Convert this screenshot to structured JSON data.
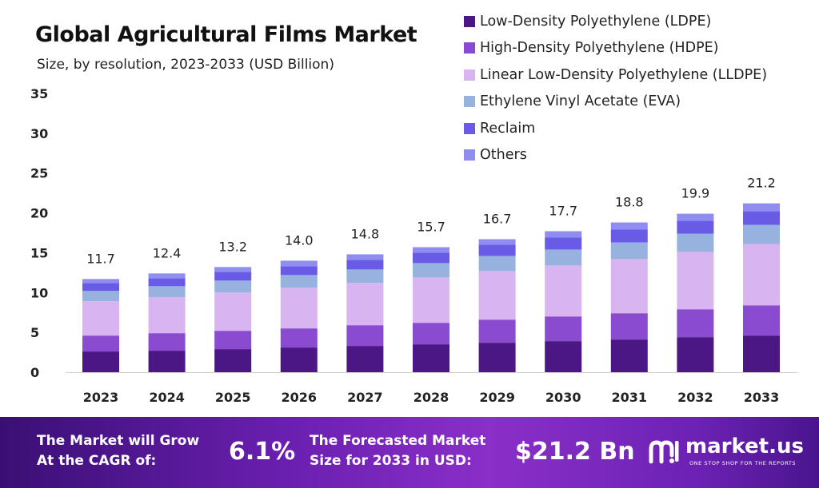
{
  "colors": {
    "ldpe": "#4b1784",
    "hdpe": "#8a4bd0",
    "lldpe": "#d8b4f0",
    "eva": "#98b2e0",
    "reclaim": "#6a5be6",
    "others": "#8f8ef0",
    "banner_start": "#3a0f74",
    "banner_end": "#8a2fc8"
  },
  "chart_data": {
    "type": "bar",
    "stacked": true,
    "title": "Global Agricultural Films Market",
    "subtitle": "Size, by resolution, 2023-2033 (USD Billion)",
    "xlabel": "",
    "ylabel": "",
    "ylim": [
      0,
      35
    ],
    "yticks": [
      0,
      5,
      10,
      15,
      20,
      25,
      30,
      35
    ],
    "grid": false,
    "legend_position": "top-right",
    "categories": [
      "2023",
      "2024",
      "2025",
      "2026",
      "2027",
      "2028",
      "2029",
      "2030",
      "2031",
      "2032",
      "2033"
    ],
    "totals": [
      11.7,
      12.4,
      13.2,
      14.0,
      14.8,
      15.7,
      16.7,
      17.7,
      18.8,
      19.9,
      21.2
    ],
    "total_labels": [
      "11.7",
      "12.4",
      "13.2",
      "14.0",
      "14.8",
      "15.7",
      "16.7",
      "17.7",
      "18.8",
      "19.9",
      "21.2"
    ],
    "series": [
      {
        "name": "Low-Density Polyethylene (LDPE)",
        "color_key": "ldpe",
        "values": [
          2.6,
          2.7,
          2.9,
          3.1,
          3.3,
          3.5,
          3.7,
          3.9,
          4.1,
          4.4,
          4.6
        ]
      },
      {
        "name": "High-Density Polyethylene (HDPE)",
        "color_key": "hdpe",
        "values": [
          2.0,
          2.2,
          2.3,
          2.4,
          2.6,
          2.7,
          2.9,
          3.1,
          3.3,
          3.5,
          3.8
        ]
      },
      {
        "name": "Linear Low-Density Polyethylene (LLDPE)",
        "color_key": "lldpe",
        "values": [
          4.3,
          4.5,
          4.8,
          5.1,
          5.3,
          5.7,
          6.1,
          6.4,
          6.8,
          7.2,
          7.7
        ]
      },
      {
        "name": "Ethylene Vinyl Acetate (EVA)",
        "color_key": "eva",
        "values": [
          1.3,
          1.4,
          1.5,
          1.6,
          1.7,
          1.8,
          1.9,
          2.0,
          2.1,
          2.3,
          2.4
        ]
      },
      {
        "name": "Reclaim",
        "color_key": "reclaim",
        "values": [
          1.0,
          1.0,
          1.1,
          1.1,
          1.2,
          1.3,
          1.4,
          1.5,
          1.6,
          1.6,
          1.7
        ]
      },
      {
        "name": "Others",
        "color_key": "others",
        "values": [
          0.5,
          0.6,
          0.6,
          0.7,
          0.7,
          0.7,
          0.7,
          0.8,
          0.9,
          0.9,
          1.0
        ]
      }
    ]
  },
  "banner": {
    "cagr_label_line1": "The Market will Grow",
    "cagr_label_line2": "At the CAGR of:",
    "cagr_value": "6.1%",
    "forecast_label_line1": "The Forecasted Market",
    "forecast_label_line2": "Size for 2033 in USD:",
    "forecast_value": "$21.2 Bn",
    "logo_text": "market.us",
    "logo_tagline": "ONE STOP SHOP FOR THE REPORTS",
    "logo_icon": "market-us-logo-icon"
  }
}
